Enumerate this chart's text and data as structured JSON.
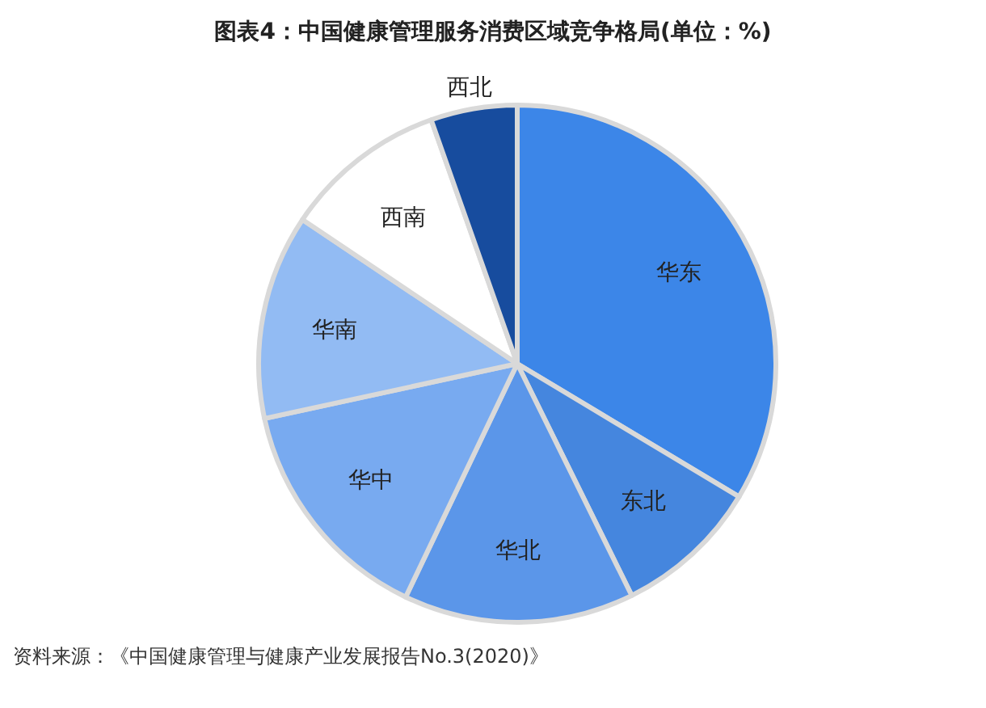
{
  "chart_data": {
    "type": "pie",
    "title": "图表4：中国健康管理服务消费区域竞争格局(单位：%)",
    "categories": [
      "华东",
      "东北",
      "华北",
      "华中",
      "华南",
      "西南",
      "西北"
    ],
    "values": [
      33.6,
      9.1,
      14.4,
      14.5,
      12.8,
      10.2,
      5.4
    ],
    "colors": [
      "#3c86e8",
      "#4586de",
      "#5b96e9",
      "#78aaf0",
      "#92bbf3",
      "#ffffff",
      "#174c9e"
    ],
    "annotations": [
      "资料来源：《中国健康管理与健康产业发展报告No.3(2020)》"
    ]
  }
}
